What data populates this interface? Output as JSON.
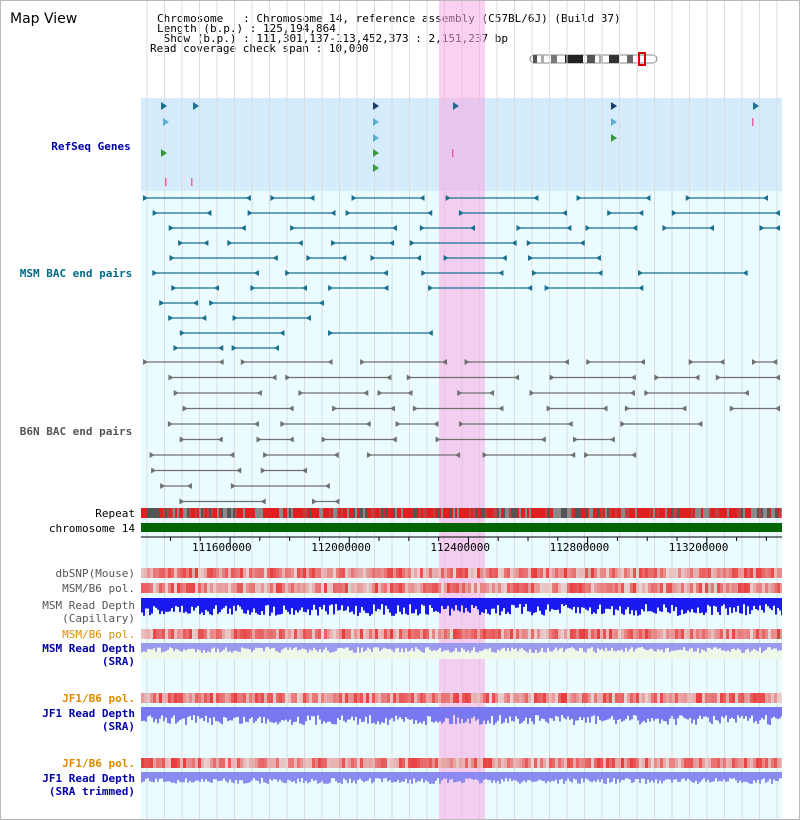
{
  "title": "Map View",
  "info": {
    "chromosome_label": "Chromosome   ",
    "chromosome_value": ": Chromosome 14, reference assembly (C57BL/6J) (Build 37)",
    "length_label": "Length (b.p.)",
    "length_value": ": 125,194,864",
    "show_label": " Show (b.p.)",
    "show_value": ": 111,301,137-113,452,373 : 2,151,237 bp",
    "coverage_label": "Read coverage check span",
    "coverage_value": ": 10,000"
  },
  "tracks": {
    "refseq": "RefSeq Genes",
    "msm_bac": "MSM BAC end pairs",
    "b6n_bac": "B6N BAC end pairs",
    "repeat": "Repeat",
    "chromosome": "chromosome 14",
    "dbsnp": "dbSNP(Mouse)",
    "msm_b6_pol_1": "MSM/B6 pol.",
    "msm_read_depth_cap_1": "MSM Read Depth",
    "msm_read_depth_cap_2": "(Capillary)",
    "msm_b6_pol_2": "MSM/B6 pol.",
    "msm_read_depth_sra_1": "MSM Read Depth",
    "msm_read_depth_sra_2": "(SRA)",
    "jf1_b6_pol_1": "JF1/B6 pol.",
    "jf1_read_depth_sra_1": "JF1 Read Depth",
    "jf1_read_depth_sra_2": "(SRA)",
    "jf1_b6_pol_2": "JF1/B6 pol.",
    "jf1_read_depth_trim_1": "JF1 Read Depth",
    "jf1_read_depth_trim_2": "(SRA trimmed)"
  },
  "axis": {
    "start_bp": 111301137,
    "end_bp": 113452373,
    "ticks": [
      "111600000",
      "112000000",
      "112400000",
      "112800000",
      "113200000"
    ],
    "tick_values": [
      111600000,
      112000000,
      112400000,
      112800000,
      113200000
    ]
  },
  "highlight": {
    "start_bp": 112300000,
    "end_bp": 112455000
  },
  "colors": {
    "refseq_band": "#d4ecfb",
    "light_band": "#eafcff",
    "highlight": "#f6b9e8",
    "msm_bac": "#1a6f8f",
    "b6n_bac": "#707070",
    "chromosome_bar": "#006400",
    "depth_dark": "#1a1af0",
    "depth_light": "#7878f0",
    "pol_red": "#e83030",
    "label_blue": "#0000aa",
    "label_teal": "#006a8a",
    "label_gray": "#555555",
    "label_orange": "#e08a00"
  }
}
